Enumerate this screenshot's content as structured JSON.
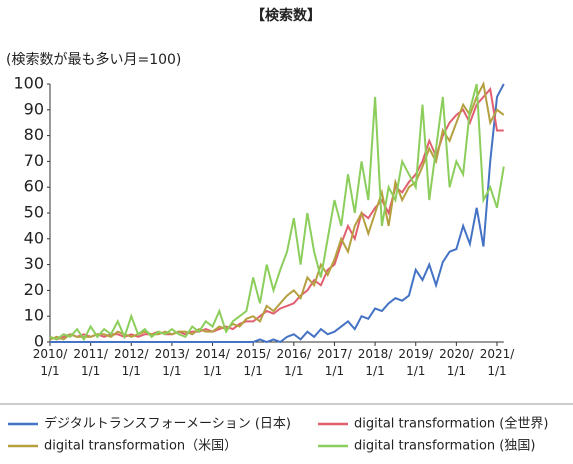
{
  "chart_data": {
    "type": "line",
    "title": "【検索数】",
    "y_label": "(検索数が最も多い月=100)",
    "categories": [
      "2010/\n1/1",
      null,
      null,
      null,
      null,
      null,
      "2011/\n1/1",
      null,
      null,
      null,
      null,
      null,
      "2012/\n1/1",
      null,
      null,
      null,
      null,
      null,
      "2013/\n1/1",
      null,
      null,
      null,
      null,
      null,
      "2014/\n1/1",
      null,
      null,
      null,
      null,
      null,
      "2015/\n1/1",
      null,
      null,
      null,
      null,
      null,
      "2016/\n1/1",
      null,
      null,
      null,
      null,
      null,
      "2017/\n1/1",
      null,
      null,
      null,
      null,
      null,
      "2018/\n1/1",
      null,
      null,
      null,
      null,
      null,
      "2019/\n1/1",
      null,
      null,
      null,
      null,
      null,
      "2020/\n1/1",
      null,
      null,
      null,
      null,
      null,
      "2021/\n1/1",
      null
    ],
    "ylim": [
      0,
      100
    ],
    "yticks": [
      0,
      10,
      20,
      30,
      40,
      50,
      60,
      70,
      80,
      90,
      100
    ],
    "legend": "bottom",
    "series": [
      {
        "name": "デジタルトランスフォーメーション (日本)",
        "color": "#4472c4",
        "values": [
          0,
          0,
          0,
          0,
          0,
          0,
          0,
          0,
          0,
          0,
          0,
          0,
          0,
          0,
          0,
          0,
          0,
          0,
          0,
          0,
          0,
          0,
          0,
          0,
          0,
          0,
          0,
          0,
          0,
          0,
          0,
          1,
          0,
          1,
          0,
          2,
          3,
          1,
          4,
          2,
          5,
          3,
          4,
          6,
          8,
          5,
          10,
          9,
          13,
          12,
          15,
          17,
          16,
          18,
          28,
          24,
          30,
          22,
          31,
          35,
          36,
          45,
          38,
          52,
          37,
          70,
          95,
          100
        ]
      },
      {
        "name": "digital transformation (全世界)",
        "color": "#e06070",
        "values": [
          2,
          1,
          2,
          3,
          2,
          3,
          2,
          3,
          2,
          3,
          3,
          2,
          3,
          2,
          3,
          3,
          4,
          3,
          3,
          4,
          3,
          4,
          4,
          5,
          4,
          5,
          6,
          5,
          7,
          8,
          8,
          10,
          12,
          11,
          13,
          14,
          15,
          18,
          20,
          24,
          22,
          28,
          30,
          38,
          45,
          40,
          50,
          48,
          52,
          55,
          50,
          60,
          58,
          62,
          65,
          70,
          78,
          72,
          80,
          85,
          88,
          90,
          85,
          92,
          95,
          98,
          82,
          82
        ]
      },
      {
        "name": "digital transformation（米国）",
        "color": "#b5a040",
        "values": [
          1,
          2,
          1,
          3,
          2,
          2,
          2,
          3,
          3,
          2,
          4,
          3,
          2,
          3,
          4,
          3,
          3,
          4,
          3,
          4,
          4,
          3,
          5,
          4,
          4,
          6,
          5,
          7,
          6,
          9,
          10,
          8,
          14,
          12,
          15,
          18,
          20,
          17,
          25,
          22,
          30,
          26,
          32,
          40,
          35,
          45,
          50,
          42,
          50,
          58,
          45,
          62,
          55,
          60,
          62,
          68,
          75,
          70,
          82,
          78,
          85,
          92,
          88,
          95,
          100,
          85,
          90,
          88
        ]
      },
      {
        "name": "digital transformation (独国)",
        "color": "#8cce5c",
        "values": [
          2,
          1,
          3,
          2,
          5,
          1,
          6,
          2,
          5,
          3,
          8,
          2,
          10,
          3,
          5,
          2,
          4,
          3,
          5,
          3,
          2,
          6,
          4,
          8,
          6,
          12,
          4,
          8,
          10,
          12,
          25,
          15,
          30,
          20,
          28,
          35,
          48,
          30,
          50,
          35,
          25,
          40,
          55,
          45,
          65,
          50,
          70,
          55,
          95,
          45,
          60,
          55,
          70,
          65,
          60,
          92,
          55,
          75,
          95,
          60,
          70,
          65,
          90,
          100,
          55,
          60,
          52,
          68
        ]
      }
    ]
  }
}
